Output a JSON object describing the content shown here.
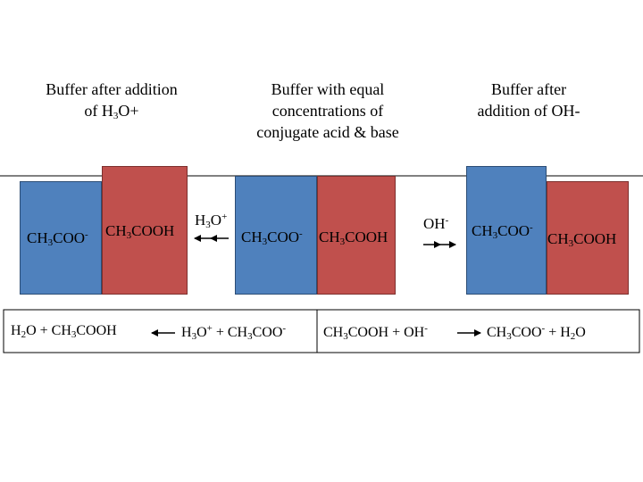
{
  "titles": [
    [
      [
        {
          "text": "Buffer after addition"
        }
      ],
      [
        {
          "text": "of H"
        },
        {
          "sub": "3"
        },
        {
          "text": "O+"
        }
      ]
    ],
    [
      [
        {
          "text": "Buffer with equal"
        }
      ],
      [
        {
          "text": "concentrations of"
        }
      ],
      [
        {
          "text": "conjugate acid & base"
        }
      ]
    ],
    [
      [
        {
          "text": "Buffer after"
        }
      ],
      [
        {
          "text": "addition of OH-"
        }
      ]
    ]
  ],
  "labels": [
    [
      {
        "text": "CH"
      },
      {
        "sub": "3"
      },
      {
        "text": "COO"
      },
      {
        "sup": "-"
      }
    ],
    [
      {
        "text": "CH"
      },
      {
        "sub": "3"
      },
      {
        "text": "COOH"
      }
    ],
    [
      {
        "text": "H"
      },
      {
        "sub": "3"
      },
      {
        "text": "O"
      },
      {
        "sup": "+"
      }
    ],
    [
      {
        "text": "CH"
      },
      {
        "sub": "3"
      },
      {
        "text": "COO"
      },
      {
        "sup": "-"
      }
    ],
    [
      {
        "text": "CH"
      },
      {
        "sub": "3"
      },
      {
        "text": "COOH"
      }
    ],
    [
      {
        "text": "OH"
      },
      {
        "sup": "-"
      }
    ],
    [
      {
        "text": "CH"
      },
      {
        "sub": "3"
      },
      {
        "text": "COO"
      },
      {
        "sup": "-"
      }
    ],
    [
      {
        "text": "CH"
      },
      {
        "sub": "3"
      },
      {
        "text": "COOH"
      }
    ]
  ],
  "equations": [
    {
      "lhs": [
        {
          "text": "H"
        },
        {
          "sub": "2"
        },
        {
          "text": "O + CH"
        },
        {
          "sub": "3"
        },
        {
          "text": "COOH"
        }
      ],
      "rhs": [
        {
          "text": "H"
        },
        {
          "sub": "3"
        },
        {
          "text": "O"
        },
        {
          "sup": "+"
        },
        {
          "text": " + CH"
        },
        {
          "sub": "3"
        },
        {
          "text": "COO"
        },
        {
          "sup": "-"
        }
      ]
    },
    {
      "lhs": [
        {
          "text": "CH"
        },
        {
          "sub": "3"
        },
        {
          "text": "COOH + OH"
        },
        {
          "sup": "-"
        }
      ],
      "rhs": [
        {
          "text": "CH"
        },
        {
          "sub": "3"
        },
        {
          "text": "COO"
        },
        {
          "sup": "-"
        },
        {
          "text": " + H"
        },
        {
          "sub": "2"
        },
        {
          "text": "O"
        }
      ]
    }
  ]
}
